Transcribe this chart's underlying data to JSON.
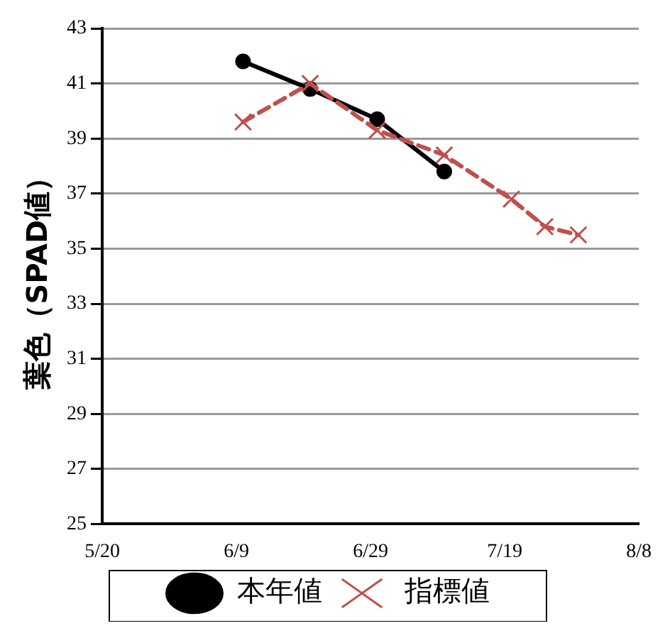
{
  "chart_data": {
    "type": "line",
    "ylabel": "葉色（SPAD値）",
    "xlim": [
      "--05-20",
      "--08-08"
    ],
    "xticks": [
      {
        "value": "--05-20",
        "label": "5/20"
      },
      {
        "value": "--06-09",
        "label": "6/9"
      },
      {
        "value": "--06-29",
        "label": "6/29"
      },
      {
        "value": "--07-19",
        "label": "7/19"
      },
      {
        "value": "--08-08",
        "label": "8/8"
      }
    ],
    "ylim": [
      25,
      43
    ],
    "yticks": [
      25,
      27,
      29,
      31,
      33,
      35,
      37,
      39,
      41,
      43
    ],
    "grid": "y",
    "legend": "bottom",
    "series": [
      {
        "name": "本年値",
        "color": "#000000",
        "marker": "circle",
        "line_style": "solid",
        "x": [
          "--06-10",
          "--06-20",
          "--06-30",
          "--07-10"
        ],
        "values": [
          41.8,
          40.8,
          39.7,
          37.8
        ]
      },
      {
        "name": "指標値",
        "color": "#c0504d",
        "marker": "cross",
        "line_style": "dashed",
        "x": [
          "--06-10",
          "--06-20",
          "--06-30",
          "--07-10",
          "--07-20",
          "--07-25",
          "--07-30"
        ],
        "values": [
          39.6,
          41.0,
          39.3,
          38.4,
          36.8,
          35.8,
          35.5
        ]
      }
    ]
  }
}
